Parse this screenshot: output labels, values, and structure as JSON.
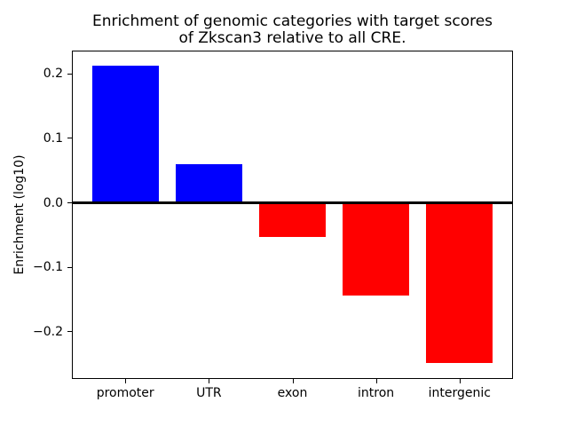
{
  "chart_data": {
    "type": "bar",
    "title": "Enrichment of genomic categories with target scores\nof Zkscan3 relative to all CRE.",
    "ylabel": "Enrichment (log10)",
    "xlabel": "",
    "categories": [
      "promoter",
      "UTR",
      "exon",
      "intron",
      "intergenic"
    ],
    "values": [
      0.213,
      0.06,
      -0.053,
      -0.144,
      -0.248
    ],
    "series_colors": {
      "positive": "#0000ff",
      "negative": "#ff0000"
    },
    "zero_line": {
      "show": true,
      "color": "#000000"
    },
    "yticks": {
      "values": [
        0.2,
        0.1,
        0.0,
        -0.1,
        -0.2
      ],
      "labels": [
        "0.2",
        "0.1",
        "0.0",
        "−0.1",
        "−0.2"
      ]
    },
    "ylim": [
      -0.273,
      0.236
    ],
    "xlim": [
      -0.64,
      4.64
    ],
    "bar_width_frac": 0.8,
    "grid": false,
    "legend": null,
    "background": "#ffffff",
    "text_color": "#000000"
  }
}
